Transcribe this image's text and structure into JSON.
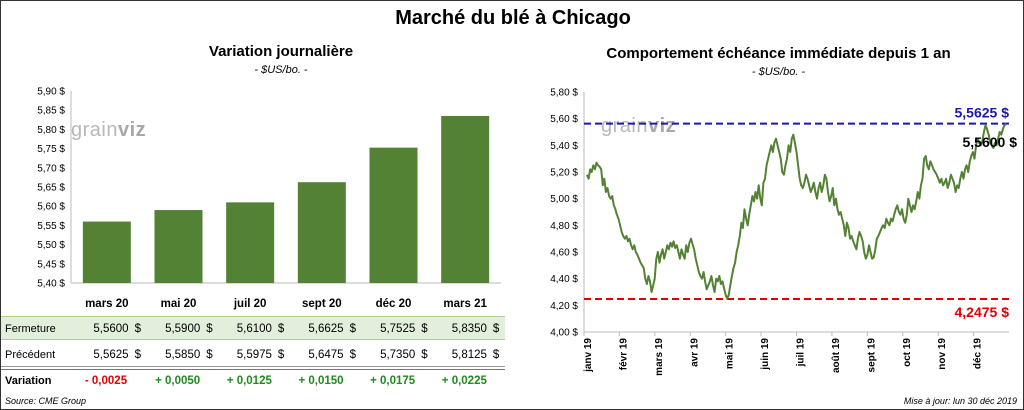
{
  "title": "Marché du blé à Chicago",
  "left_panel": {
    "title": "Variation journalière",
    "subtitle": "- $US/bo. -"
  },
  "right_panel": {
    "title": "Comportement échéance immédiate depuis 1 an",
    "subtitle": "- $US/bo. -"
  },
  "watermark": {
    "text_a": "grain",
    "text_b": "viz"
  },
  "table": {
    "row_labels": {
      "close": "Fermeture",
      "prev": "Précédent",
      "var": "Variation"
    },
    "currency": "$",
    "closes": [
      "5,5600",
      "5,5900",
      "5,6100",
      "5,6625",
      "5,7525",
      "5,8350"
    ],
    "prevs": [
      "5,5625",
      "5,5850",
      "5,5975",
      "5,6475",
      "5,7350",
      "5,8125"
    ],
    "variations": [
      "- 0,0025",
      "+ 0,0050",
      "+ 0,0125",
      "+ 0,0150",
      "+ 0,0175",
      "+ 0,0225"
    ],
    "variation_colors": [
      "#e00000",
      "#1f8a1f",
      "#1f8a1f",
      "#1f8a1f",
      "#1f8a1f",
      "#1f8a1f"
    ]
  },
  "footer": {
    "source": "Source: CME Group",
    "updated": "Mise à jour: lun 30 déc 2019"
  },
  "colors": {
    "bar": "#548235",
    "line": "#548235",
    "high": "#1a1aa6",
    "low": "#e00000"
  },
  "chart_data": [
    {
      "type": "bar",
      "categories": [
        "mars 20",
        "mai 20",
        "juil 20",
        "sept 20",
        "déc 20",
        "mars 21"
      ],
      "values": [
        5.56,
        5.59,
        5.61,
        5.6625,
        5.7525,
        5.835
      ],
      "ylim": [
        5.4,
        5.9
      ],
      "yticks": [
        "5,40 $",
        "5,45 $",
        "5,50 $",
        "5,55 $",
        "5,60 $",
        "5,65 $",
        "5,70 $",
        "5,75 $",
        "5,80 $",
        "5,85 $",
        "5,90 $"
      ],
      "grid": false
    },
    {
      "type": "line",
      "ylim": [
        4.0,
        5.8
      ],
      "yticks": [
        "4,00 $",
        "4,20 $",
        "4,40 $",
        "4,60 $",
        "4,80 $",
        "5,00 $",
        "5,20 $",
        "5,40 $",
        "5,60 $",
        "5,80 $"
      ],
      "xticks": [
        "janv 19",
        "févr 19",
        "mars 19",
        "avr 19",
        "mai 19",
        "juin 19",
        "juil 19",
        "août 19",
        "sept 19",
        "oct 19",
        "nov 19",
        "déc 19"
      ],
      "high": {
        "value": 5.5625,
        "label": "5,5625 $"
      },
      "low": {
        "value": 4.2475,
        "label": "4,2475 $"
      },
      "last": {
        "value": 5.56,
        "label": "5,5600 $"
      },
      "series": [
        {
          "values": [
            5.18,
            5.15,
            5.22,
            5.2,
            5.25,
            5.22,
            5.27,
            5.25,
            5.24,
            5.22,
            5.1,
            5.15,
            5.05,
            5.08,
            5.02,
            5.0,
            5.02,
            4.95,
            4.92,
            4.88,
            4.85,
            4.8,
            4.75,
            4.72,
            4.7,
            4.72,
            4.68,
            4.7,
            4.65,
            4.62,
            4.65,
            4.6,
            4.58,
            4.55,
            4.52,
            4.5,
            4.48,
            4.4,
            4.36,
            4.42,
            4.38,
            4.3,
            4.35,
            4.4,
            4.55,
            4.6,
            4.52,
            4.58,
            4.62,
            4.55,
            4.6,
            4.65,
            4.62,
            4.67,
            4.64,
            4.68,
            4.63,
            4.65,
            4.6,
            4.55,
            4.62,
            4.58,
            4.55,
            4.65,
            4.6,
            4.67,
            4.7,
            4.66,
            4.62,
            4.55,
            4.5,
            4.45,
            4.42,
            4.4,
            4.45,
            4.38,
            4.32,
            4.35,
            4.38,
            4.42,
            4.35,
            4.3,
            4.4,
            4.38,
            4.42,
            4.36,
            4.38,
            4.33,
            4.28,
            4.25,
            4.28,
            4.35,
            4.42,
            4.48,
            4.52,
            4.6,
            4.65,
            4.72,
            4.82,
            4.78,
            4.92,
            4.85,
            4.8,
            4.88,
            4.95,
            5.02,
            4.98,
            5.05,
            5.0,
            5.1,
            5.0,
            4.95,
            5.12,
            5.15,
            5.25,
            5.3,
            5.35,
            5.4,
            5.35,
            5.42,
            5.45,
            5.4,
            5.35,
            5.3,
            5.2,
            5.18,
            5.25,
            5.3,
            5.4,
            5.35,
            5.45,
            5.48,
            5.42,
            5.35,
            5.25,
            5.15,
            5.1,
            5.08,
            5.12,
            5.18,
            5.15,
            5.1,
            5.05,
            5.08,
            5.12,
            5.05,
            5.0,
            5.08,
            5.12,
            5.05,
            5.1,
            5.18,
            5.15,
            5.05,
            4.98,
            5.02,
            5.08,
            4.95,
            5.0,
            4.92,
            4.88,
            4.9,
            4.85,
            4.8,
            4.72,
            4.82,
            4.78,
            4.7,
            4.72,
            4.68,
            4.65,
            4.62,
            4.7,
            4.75,
            4.72,
            4.68,
            4.6,
            4.55,
            4.58,
            4.65,
            4.6,
            4.55,
            4.56,
            4.62,
            4.7,
            4.72,
            4.75,
            4.78,
            4.8,
            4.78,
            4.85,
            4.82,
            4.8,
            4.85,
            4.83,
            4.88,
            4.92,
            4.95,
            4.9,
            4.88,
            4.92,
            4.85,
            4.82,
            4.88,
            5.0,
            4.95,
            4.9,
            4.95,
            4.92,
            4.98,
            5.05,
            5.0,
            5.1,
            5.15,
            5.3,
            5.32,
            5.25,
            5.22,
            5.28,
            5.25,
            5.22,
            5.2,
            5.18,
            5.15,
            5.12,
            5.15,
            5.1,
            5.12,
            5.15,
            5.08,
            5.12,
            5.18,
            5.15,
            5.12,
            5.05,
            5.1,
            5.08,
            5.15,
            5.2,
            5.15,
            5.22,
            5.25,
            5.2,
            5.28,
            5.32,
            5.35,
            5.3,
            5.4,
            5.45,
            5.42,
            5.4,
            5.43,
            5.5,
            5.55,
            5.52,
            5.48,
            5.42,
            5.4,
            5.38,
            5.42,
            5.4,
            5.45,
            5.5,
            5.48,
            5.52,
            5.55,
            5.56
          ]
        }
      ]
    }
  ]
}
